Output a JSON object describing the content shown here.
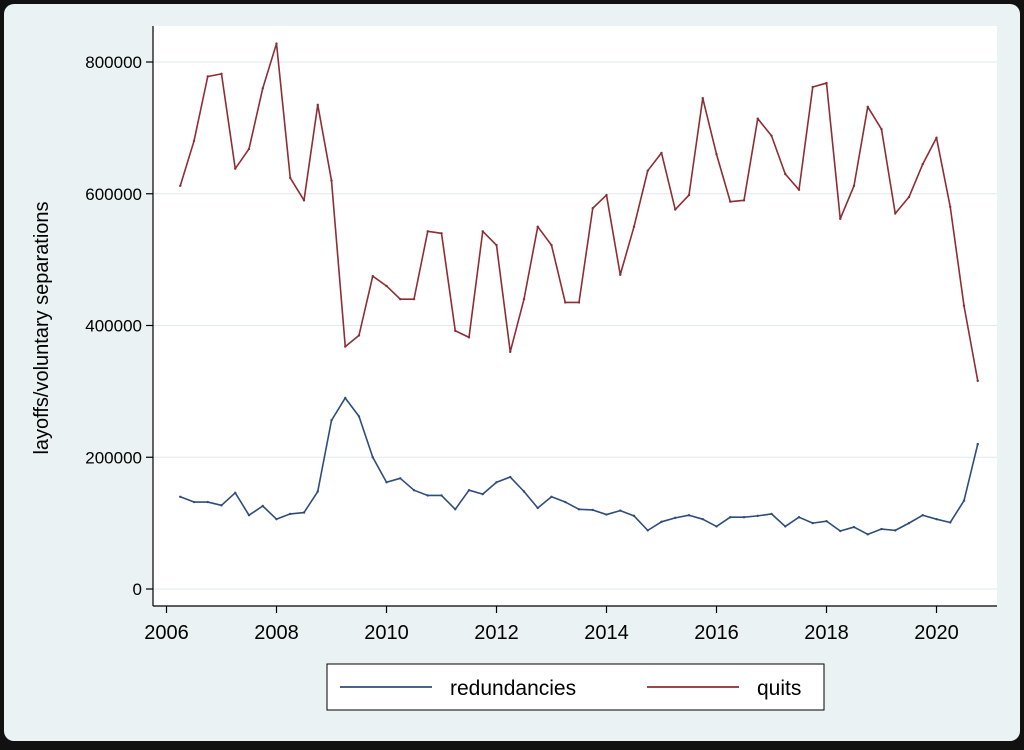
{
  "colors": {
    "outer_frame": "#111111",
    "background": "#eaf2f3",
    "plot_area": "#ffffff",
    "gridline": "#e2e8ec",
    "axis": "#000000",
    "redundancies": "#2f4d7a",
    "quits": "#8e2d34"
  },
  "chart_data": {
    "type": "line",
    "title": "",
    "xlabel": "",
    "ylabel": "layoffs/voluntary separations",
    "xlim": [
      2006,
      2021
    ],
    "ylim": [
      0,
      800000
    ],
    "x_ticks": [
      2006,
      2008,
      2010,
      2012,
      2014,
      2016,
      2018,
      2020
    ],
    "y_ticks": [
      0,
      200000,
      400000,
      600000,
      800000
    ],
    "grid": true,
    "legend_position": "bottom",
    "x": [
      2006.25,
      2006.5,
      2006.75,
      2007.0,
      2007.25,
      2007.5,
      2007.75,
      2008.0,
      2008.25,
      2008.5,
      2008.75,
      2009.0,
      2009.25,
      2009.5,
      2009.75,
      2010.0,
      2010.25,
      2010.5,
      2010.75,
      2011.0,
      2011.25,
      2011.5,
      2011.75,
      2012.0,
      2012.25,
      2012.5,
      2012.75,
      2013.0,
      2013.25,
      2013.5,
      2013.75,
      2014.0,
      2014.25,
      2014.5,
      2014.75,
      2015.0,
      2015.25,
      2015.5,
      2015.75,
      2016.0,
      2016.25,
      2016.5,
      2016.75,
      2017.0,
      2017.25,
      2017.5,
      2017.75,
      2018.0,
      2018.25,
      2018.5,
      2018.75,
      2019.0,
      2019.25,
      2019.5,
      2019.75,
      2020.0,
      2020.25,
      2020.5,
      2020.75
    ],
    "series": [
      {
        "name": "redundancies",
        "color": "#2f4d7a",
        "values": [
          140000,
          132000,
          132000,
          127000,
          146000,
          112000,
          126000,
          106000,
          114000,
          116000,
          148000,
          256000,
          290000,
          262000,
          200000,
          162000,
          168000,
          150000,
          142000,
          142000,
          121000,
          150000,
          144000,
          162000,
          170000,
          148000,
          123000,
          140000,
          132000,
          121000,
          120000,
          113000,
          119000,
          111000,
          89000,
          102000,
          108000,
          112000,
          106000,
          95000,
          109000,
          109000,
          111000,
          114000,
          95000,
          109000,
          100000,
          103000,
          88000,
          94000,
          83000,
          91000,
          89000,
          100000,
          112000,
          106000,
          101000,
          134000,
          220000
        ]
      },
      {
        "name": "quits",
        "color": "#8e2d34",
        "values": [
          612000,
          680000,
          778000,
          782000,
          638000,
          668000,
          760000,
          828000,
          624000,
          590000,
          735000,
          620000,
          368000,
          385000,
          475000,
          460000,
          440000,
          440000,
          543000,
          540000,
          392000,
          382000,
          543000,
          522000,
          360000,
          440000,
          550000,
          522000,
          435000,
          435000,
          578000,
          598000,
          477000,
          550000,
          635000,
          662000,
          576000,
          598000,
          745000,
          660000,
          588000,
          590000,
          714000,
          688000,
          630000,
          606000,
          762000,
          768000,
          562000,
          612000,
          732000,
          698000,
          570000,
          595000,
          645000,
          685000,
          580000,
          430000,
          316000
        ]
      }
    ]
  }
}
